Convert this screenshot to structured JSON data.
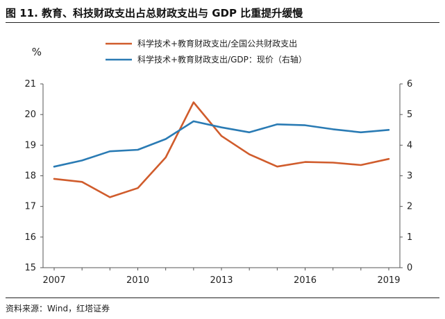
{
  "header": {
    "title": "图 11. 教育、科技财政支出占总财政支出与 GDP 比重提升缓慢"
  },
  "footer": {
    "source": "资料来源：Wind，红塔证券"
  },
  "chart_data": {
    "type": "line",
    "y_unit_label": "%",
    "x": [
      2007,
      2008,
      2009,
      2010,
      2011,
      2012,
      2013,
      2014,
      2015,
      2016,
      2017,
      2018,
      2019
    ],
    "x_ticks": [
      "2007",
      "2010",
      "2013",
      "2016",
      "2019"
    ],
    "left_axis": {
      "ylim": [
        15,
        21
      ],
      "ticks": [
        "15",
        "16",
        "17",
        "18",
        "19",
        "20",
        "21"
      ]
    },
    "right_axis": {
      "ylim": [
        0,
        6
      ],
      "ticks": [
        "0",
        "1",
        "2",
        "3",
        "4",
        "5",
        "6"
      ]
    },
    "grid": false,
    "legend_position": "top-center",
    "series": [
      {
        "name": "科学技术+教育财政支出/全国公共财政支出",
        "axis": "left",
        "color": "#D05C2C",
        "values": [
          17.9,
          17.8,
          17.3,
          17.6,
          18.6,
          20.4,
          19.3,
          18.7,
          18.3,
          18.45,
          18.43,
          18.35,
          18.55
        ]
      },
      {
        "name": "科学技术+教育财政支出/GDP：现价（右轴）",
        "axis": "right",
        "color": "#2A7BB4",
        "values": [
          3.3,
          3.5,
          3.8,
          3.85,
          4.2,
          4.78,
          4.58,
          4.42,
          4.68,
          4.65,
          4.52,
          4.42,
          4.5
        ]
      }
    ]
  }
}
